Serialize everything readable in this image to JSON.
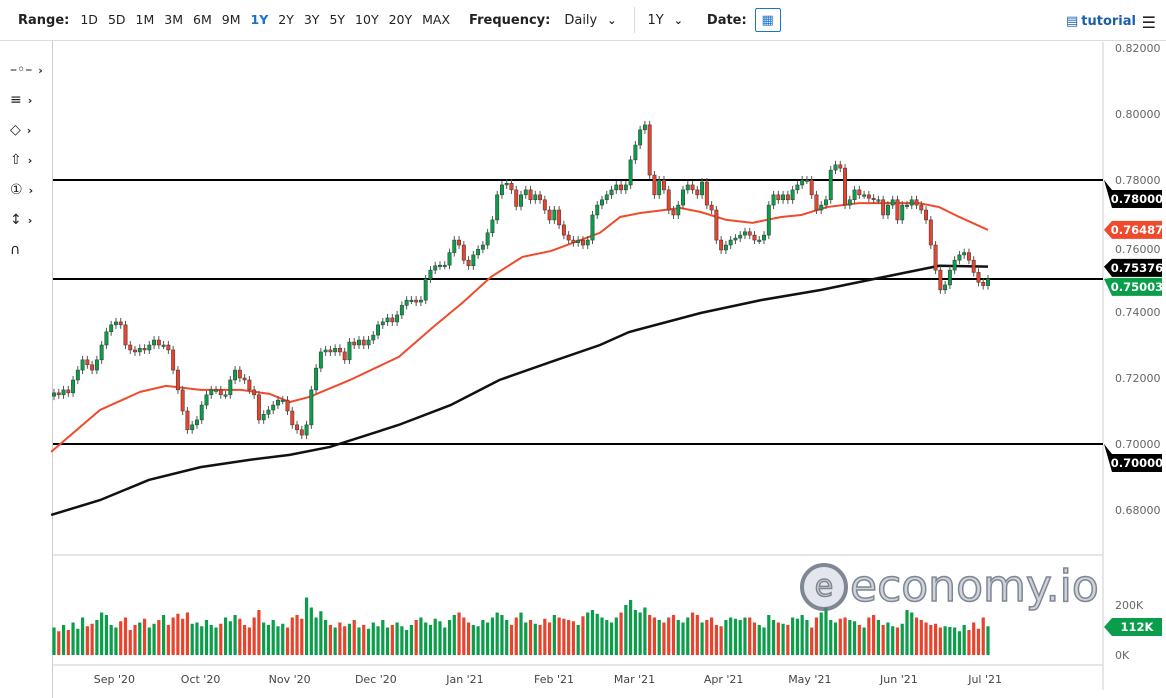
{
  "toolbar": {
    "range_label": "Range:",
    "ranges": [
      "1D",
      "5D",
      "1M",
      "3M",
      "6M",
      "9M",
      "1Y",
      "2Y",
      "3Y",
      "5Y",
      "10Y",
      "20Y",
      "MAX"
    ],
    "active_range": "1Y",
    "frequency_label": "Frequency:",
    "frequency_value": "Daily",
    "period_value": "1Y",
    "date_label": "Date:",
    "calendar_icon": "calendar-icon",
    "tutorial_label": "tutorial",
    "menu_icon": "hamburger-menu-icon"
  },
  "left_tools": [
    "line-segment-icon",
    "fibonacci-icon",
    "shapes-icon",
    "arrow-up-icon",
    "annotation-number-icon",
    "measure-icon",
    "magnet-icon"
  ],
  "watermark": "economy.io",
  "colors": {
    "up": "#0a9d4a",
    "down": "#e8432c",
    "ma50": "#f04a2c",
    "ma200": "#111111",
    "level": "#000000",
    "axis_text": "#666666"
  },
  "chart_data": {
    "type": "candlestick",
    "title": "",
    "y_axis": {
      "min": 0.672,
      "max": 0.82,
      "ticks": [
        "0.82000",
        "0.80000",
        "0.78000",
        "0.76000",
        "0.74000",
        "0.72000",
        "0.70000",
        "0.68000"
      ],
      "tick_values": [
        0.82,
        0.8,
        0.78,
        0.76,
        0.74,
        0.72,
        0.7,
        0.68
      ]
    },
    "x_axis": {
      "start": "2020-08-11",
      "end": "2021-07-02",
      "ticks": [
        {
          "label": "Sep '20",
          "date": "2020-09-01"
        },
        {
          "label": "Oct '20",
          "date": "2020-10-01"
        },
        {
          "label": "Nov '20",
          "date": "2020-11-01"
        },
        {
          "label": "Dec '20",
          "date": "2020-12-01"
        },
        {
          "label": "Jan '21",
          "date": "2021-01-01"
        },
        {
          "label": "Feb '21",
          "date": "2021-02-01"
        },
        {
          "label": "Mar '21",
          "date": "2021-03-01"
        },
        {
          "label": "Apr '21",
          "date": "2021-04-01"
        },
        {
          "label": "May '21",
          "date": "2021-05-01"
        },
        {
          "label": "Jun '21",
          "date": "2021-06-01"
        },
        {
          "label": "Jul '21",
          "date": "2021-07-01"
        }
      ]
    },
    "closes": [
      0.7155,
      0.7149,
      0.7164,
      0.7155,
      0.7194,
      0.7224,
      0.7255,
      0.724,
      0.7224,
      0.7255,
      0.73,
      0.734,
      0.7361,
      0.737,
      0.7361,
      0.73,
      0.7285,
      0.7279,
      0.729,
      0.7285,
      0.73,
      0.7315,
      0.73,
      0.73,
      0.7285,
      0.7224,
      0.7164,
      0.71,
      0.7043,
      0.7058,
      0.7073,
      0.7118,
      0.7149,
      0.7164,
      0.7164,
      0.7149,
      0.7149,
      0.7194,
      0.7224,
      0.72,
      0.7194,
      0.7164,
      0.7149,
      0.7073,
      0.709,
      0.7103,
      0.7118,
      0.7133,
      0.7133,
      0.71,
      0.7058,
      0.7043,
      0.7027,
      0.7058,
      0.7164,
      0.723,
      0.7279,
      0.7285,
      0.7279,
      0.729,
      0.7279,
      0.7255,
      0.7309,
      0.73,
      0.7315,
      0.73,
      0.7315,
      0.733,
      0.7361,
      0.737,
      0.7382,
      0.737,
      0.7391,
      0.742,
      0.7436,
      0.7436,
      0.743,
      0.7436,
      0.75,
      0.7527,
      0.754,
      0.7542,
      0.7542,
      0.758,
      0.7618,
      0.7603,
      0.7557,
      0.754,
      0.7573,
      0.759,
      0.7603,
      0.764,
      0.7679,
      0.7755,
      0.7785,
      0.779,
      0.777,
      0.772,
      0.7755,
      0.777,
      0.774,
      0.7755,
      0.774,
      0.7709,
      0.7679,
      0.7709,
      0.7664,
      0.7633,
      0.7618,
      0.761,
      0.7618,
      0.7603,
      0.7618,
      0.7694,
      0.7724,
      0.774,
      0.7755,
      0.777,
      0.7785,
      0.777,
      0.7785,
      0.7861,
      0.7906,
      0.7952,
      0.7967,
      0.7815,
      0.7755,
      0.78,
      0.777,
      0.7709,
      0.7694,
      0.7724,
      0.777,
      0.7785,
      0.777,
      0.7755,
      0.7794,
      0.7724,
      0.7709,
      0.7618,
      0.7588,
      0.7603,
      0.7618,
      0.7624,
      0.7633,
      0.7643,
      0.7633,
      0.7618,
      0.7618,
      0.7633,
      0.7724,
      0.7755,
      0.774,
      0.7755,
      0.774,
      0.777,
      0.7785,
      0.78,
      0.78,
      0.7755,
      0.7709,
      0.7724,
      0.774,
      0.783,
      0.7846,
      0.7836,
      0.7724,
      0.774,
      0.777,
      0.7755,
      0.7755,
      0.7745,
      0.774,
      0.774,
      0.7694,
      0.7724,
      0.774,
      0.7679,
      0.7724,
      0.7724,
      0.774,
      0.7724,
      0.7709,
      0.7679,
      0.7603,
      0.7527,
      0.7467,
      0.7482,
      0.7527,
      0.7557,
      0.7573,
      0.758,
      0.7557,
      0.752,
      0.749,
      0.748,
      0.75
    ],
    "volumes_k": [
      110,
      95,
      120,
      100,
      130,
      105,
      150,
      115,
      125,
      140,
      170,
      160,
      120,
      110,
      135,
      150,
      100,
      120,
      130,
      145,
      110,
      125,
      140,
      160,
      120,
      150,
      165,
      145,
      170,
      125,
      130,
      115,
      140,
      120,
      110,
      125,
      150,
      135,
      160,
      145,
      120,
      110,
      150,
      180,
      130,
      120,
      140,
      115,
      125,
      110,
      150,
      160,
      145,
      230,
      190,
      150,
      175,
      140,
      120,
      110,
      130,
      115,
      125,
      140,
      110,
      120,
      105,
      130,
      115,
      140,
      110,
      120,
      130,
      115,
      100,
      120,
      140,
      150,
      130,
      120,
      145,
      135,
      110,
      140,
      160,
      170,
      150,
      130,
      120,
      115,
      140,
      130,
      150,
      170,
      160,
      140,
      120,
      150,
      170,
      130,
      140,
      125,
      120,
      145,
      130,
      160,
      150,
      145,
      140,
      135,
      120,
      155,
      170,
      180,
      165,
      150,
      140,
      130,
      150,
      170,
      200,
      220,
      180,
      170,
      190,
      160,
      150,
      140,
      130,
      150,
      160,
      140,
      130,
      150,
      170,
      160,
      130,
      140,
      150,
      120,
      115,
      140,
      150,
      145,
      140,
      150,
      150,
      130,
      120,
      110,
      160,
      140,
      130,
      125,
      120,
      150,
      145,
      160,
      140,
      110,
      150,
      170,
      190,
      140,
      130,
      145,
      150,
      140,
      135,
      120,
      110,
      150,
      160,
      140,
      120,
      130,
      115,
      110,
      125,
      180,
      170,
      150,
      140,
      130,
      120,
      125,
      110,
      115,
      112
    ],
    "volume_axis": {
      "ticks": [
        "200K",
        "0K"
      ],
      "tick_values": [
        200,
        0
      ]
    },
    "ma_series": [
      {
        "key": "ma50",
        "points": [
          [
            "2020-08-10",
            0.6976
          ],
          [
            "2020-08-27",
            0.7103
          ],
          [
            "2020-09-10",
            0.7158
          ],
          [
            "2020-09-19",
            0.7176
          ],
          [
            "2020-10-01",
            0.7164
          ],
          [
            "2020-10-15",
            0.7164
          ],
          [
            "2020-10-25",
            0.7152
          ],
          [
            "2020-11-01",
            0.7127
          ],
          [
            "2020-11-08",
            0.7143
          ],
          [
            "2020-11-22",
            0.7194
          ],
          [
            "2020-12-09",
            0.7264
          ],
          [
            "2020-12-21",
            0.7355
          ],
          [
            "2020-12-31",
            0.7427
          ],
          [
            "2021-01-10",
            0.7506
          ],
          [
            "2021-01-21",
            0.7567
          ],
          [
            "2021-01-31",
            0.7585
          ],
          [
            "2021-02-17",
            0.764
          ],
          [
            "2021-02-24",
            0.7688
          ],
          [
            "2021-03-03",
            0.77
          ],
          [
            "2021-03-17",
            0.7715
          ],
          [
            "2021-03-24",
            0.7703
          ],
          [
            "2021-04-02",
            0.7679
          ],
          [
            "2021-04-11",
            0.767
          ],
          [
            "2021-04-21",
            0.7688
          ],
          [
            "2021-04-28",
            0.7694
          ],
          [
            "2021-05-07",
            0.7718
          ],
          [
            "2021-05-18",
            0.773
          ],
          [
            "2021-06-08",
            0.773
          ],
          [
            "2021-06-15",
            0.7718
          ],
          [
            "2021-06-22",
            0.7688
          ],
          [
            "2021-07-02",
            0.76487
          ]
        ]
      },
      {
        "key": "ma200",
        "points": [
          [
            "2020-08-10",
            0.6785
          ],
          [
            "2020-08-27",
            0.683
          ],
          [
            "2020-09-13",
            0.6891
          ],
          [
            "2020-10-01",
            0.693
          ],
          [
            "2020-10-18",
            0.6952
          ],
          [
            "2020-11-01",
            0.6967
          ],
          [
            "2020-11-15",
            0.6991
          ],
          [
            "2020-12-09",
            0.7058
          ],
          [
            "2020-12-27",
            0.7118
          ],
          [
            "2021-01-13",
            0.7194
          ],
          [
            "2021-01-31",
            0.7249
          ],
          [
            "2021-02-17",
            0.73
          ],
          [
            "2021-02-27",
            0.7339
          ],
          [
            "2021-03-24",
            0.7397
          ],
          [
            "2021-04-14",
            0.7436
          ],
          [
            "2021-05-05",
            0.7467
          ],
          [
            "2021-05-25",
            0.7503
          ],
          [
            "2021-06-15",
            0.754
          ],
          [
            "2021-07-02",
            0.75376
          ]
        ]
      }
    ],
    "horizontal_levels": [
      0.78,
      0.75,
      0.7
    ],
    "price_labels": [
      {
        "text": "0.78000",
        "value": 0.78,
        "color": "#000000"
      },
      {
        "text": "0.76487",
        "value": 0.76487,
        "color": "#f04a2c"
      },
      {
        "text": "0.75376",
        "value": 0.75376,
        "color": "#000000"
      },
      {
        "text": "0.75003",
        "value": 0.75003,
        "color": "#0a9d4a"
      },
      {
        "text": "0.70000",
        "value": 0.7,
        "color": "#000000"
      }
    ],
    "volume_label": {
      "text": "112K",
      "value": 112,
      "color": "#0a9d4a"
    }
  }
}
